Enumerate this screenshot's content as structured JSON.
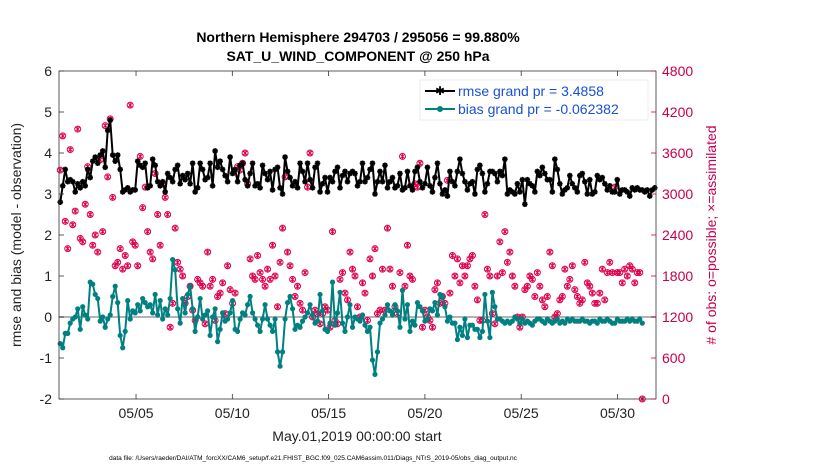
{
  "chart_data": {
    "type": "line",
    "title": "Northern Hemisphere 294703 / 295056 = 99.880%",
    "subtitle": "SAT_U_WIND_COMPONENT @ 250 hPa",
    "xlabel": "May.01,2019 00:00:00 start",
    "ylabel": "rmse and bias (model - observation)",
    "ylabel_right": "# of obs: o=possible; ×=assimilated",
    "footnote": "data file: /Users/raeder/DAI/ATM_forcXX/CAM6_setup/f.e21.FHIST_BGC.f09_025.CAM6assim.011/Diags_NTrS_2019-05/obs_diag_output.nc",
    "x_ticks": [
      "05/05",
      "05/10",
      "05/15",
      "05/20",
      "05/25",
      "05/30"
    ],
    "x_tick_days": [
      5,
      10,
      15,
      20,
      25,
      30
    ],
    "xlim": [
      1,
      32
    ],
    "ylim": [
      -2,
      6
    ],
    "y_ticks": [
      "-2",
      "-1",
      "0",
      "1",
      "2",
      "3",
      "4",
      "5",
      "6"
    ],
    "ylim_right": [
      0,
      4800
    ],
    "y_ticks_right": [
      "0",
      "600",
      "1200",
      "1800",
      "2400",
      "3000",
      "3600",
      "4200",
      "4800"
    ],
    "colors": {
      "rmse": "#000000",
      "bias": "#008080",
      "obs": "#e0004d",
      "legend_text": "#1a4fd6",
      "zero_line": "#b3b3b3"
    },
    "series": [
      {
        "name": "rmse grand pr = 3.4858",
        "values": [
          2.8,
          3.2,
          3.6,
          3.3,
          3.35,
          3.3,
          3.05,
          3.25,
          3.15,
          3.3,
          3.2,
          3.6,
          3.4,
          3.8,
          3.9,
          3.75,
          3.95,
          4.05,
          3.65,
          4.55,
          4.8,
          3.95,
          3.8,
          3.95,
          3.6,
          3.05,
          3.1,
          3.15,
          3.05,
          3.1,
          3.1,
          3.8,
          3.7,
          3.65,
          3.75,
          3.15,
          3.2,
          3.85,
          3.7,
          3.3,
          3.2,
          3.3,
          3.05,
          3.5,
          3.4,
          3.3,
          3.6,
          3.7,
          3.25,
          3.45,
          3.35,
          3.5,
          3.25,
          3.75,
          3.05,
          3.15,
          3.75,
          3.6,
          3.35,
          3.4,
          3.75,
          3.2,
          4.05,
          3.65,
          3.8,
          3.6,
          3.45,
          3.3,
          3.9,
          3.5,
          3.6,
          3.3,
          3.7,
          3.75,
          3.35,
          3.2,
          3.5,
          3.75,
          3.2,
          3.25,
          3.15,
          3.7,
          3.5,
          3.35,
          3.55,
          3.1,
          3.6,
          3.65,
          3.15,
          3.0,
          3.9,
          3.55,
          3.4,
          3.2,
          3.3,
          3.15,
          3.75,
          3.55,
          3.3,
          3.75,
          3.35,
          3.15,
          3.65,
          3.75,
          3.05,
          3.25,
          3.4,
          3.05,
          3.4,
          3.3,
          3.55,
          3.65,
          3.15,
          3.45,
          3.55,
          3.3,
          3.5,
          3.55,
          3.5,
          3.2,
          3.3,
          3.75,
          3.3,
          3.4,
          3.6,
          3.75,
          3.0,
          3.3,
          3.55,
          3.3,
          3.7,
          3.15,
          3.3,
          3.4,
          3.15,
          3.2,
          3.5,
          3.1,
          3.15,
          3.55,
          3.2,
          3.1,
          3.55,
          3.65,
          3.3,
          3.15,
          3.25,
          3.65,
          3.2,
          3.05,
          3.4,
          3.75,
          3.25,
          3.0,
          3.1,
          2.95,
          3.55,
          3.3,
          3.2,
          3.55,
          3.85,
          3.5,
          3.3,
          3.1,
          3.25,
          3.3,
          3.0,
          3.6,
          3.7,
          3.5,
          3.05,
          3.25,
          3.55,
          3.55,
          3.5,
          3.3,
          3.55,
          3.45,
          3.85,
          3.0,
          3.1,
          3.05,
          3.0,
          3.25,
          3.05,
          3.35,
          2.75,
          3.35,
          3.25,
          3.2,
          3.05,
          3.55,
          3.45,
          3.65,
          3.5,
          3.35,
          3.35,
          3.05,
          3.85,
          3.6,
          3.25,
          3.0,
          3.1,
          3.15,
          3.45,
          3.25,
          3.15,
          3.05,
          3.45,
          3.5,
          3.3,
          3.0,
          3.35,
          3.0,
          3.05,
          3.45,
          3.35,
          3.4,
          3.25,
          3.1,
          3.2,
          3.05,
          3.05,
          3.35,
          3.0,
          3.1,
          3.1,
          3.05,
          2.95,
          3.15,
          3.1,
          3.15,
          3.1,
          3.1,
          3.05,
          3.1,
          2.95,
          3.1,
          3.15
        ]
      },
      {
        "name": "bias grand pr = -0.062382",
        "values": [
          -0.65,
          -0.75,
          -0.4,
          -0.4,
          -0.15,
          -0.05,
          0.0,
          0.2,
          -0.3,
          0.25,
          0.05,
          -0.05,
          0.85,
          0.8,
          0.55,
          0.45,
          -0.1,
          0.0,
          -0.25,
          -0.05,
          0.05,
          0.5,
          0.75,
          0.35,
          -0.45,
          -0.75,
          -0.35,
          0.4,
          -0.05,
          0.15,
          0.1,
          0.3,
          0.15,
          0.45,
          0.35,
          0.25,
          0.3,
          0.1,
          0.55,
          0.05,
          0.4,
          -0.05,
          0.2,
          0.05,
          0.45,
          1.4,
          1.15,
          0.2,
          -0.15,
          0.45,
          0.1,
          0.55,
          0.75,
          0.2,
          -0.35,
          0.0,
          0.45,
          -0.05,
          0.05,
          0.15,
          -0.45,
          0.0,
          0.2,
          -0.6,
          -0.3,
          0.1,
          -0.1,
          -0.05,
          0.1,
          0.4,
          -0.3,
          -0.35,
          -0.05,
          0.1,
          0.05,
          0.3,
          0.5,
          0.1,
          -0.05,
          -0.2,
          -0.35,
          -0.05,
          0.3,
          -0.05,
          -0.2,
          -0.35,
          -0.05,
          -0.85,
          -1.2,
          -0.85,
          -0.05,
          0.35,
          0.5,
          0.2,
          -0.3,
          -0.2,
          -0.25,
          -0.1,
          0.0,
          0.1,
          0.3,
          0.05,
          -0.15,
          -0.1,
          0.55,
          0.15,
          -0.3,
          -0.35,
          -0.15,
          0.85,
          -0.2,
          0.1,
          0.6,
          -0.15,
          -0.35,
          0.0,
          0.3,
          -0.25,
          0.0,
          -0.05,
          -0.1,
          0.05,
          -0.2,
          -0.35,
          -0.25,
          -1.05,
          -1.4,
          -0.85,
          -0.15,
          -0.05,
          0.05,
          0.3,
          0.15,
          0.05,
          0.3,
          0.15,
          -0.25,
          0.65,
          -0.05,
          0.3,
          -0.35,
          -0.1,
          -0.2,
          0.35,
          0.25,
          0.15,
          -0.1,
          -0.05,
          0.2,
          0.15,
          0.35,
          0.05,
          0.55,
          0.5,
          0.25,
          -0.1,
          0.0,
          -0.15,
          -0.15,
          -0.55,
          -0.25,
          -0.45,
          -0.05,
          -0.5,
          -0.2,
          -0.2,
          -0.3,
          -0.3,
          -0.5,
          -0.35,
          0.55,
          -0.1,
          -0.5,
          0.6,
          0.25,
          -0.05,
          -0.05,
          -0.1,
          -0.15,
          -0.1,
          -0.15,
          -0.1,
          0.0,
          -0.05,
          -0.15,
          -0.05,
          -0.15,
          -0.1,
          -0.15,
          -0.2,
          -0.1,
          -0.05,
          -0.05,
          -0.1,
          -0.15,
          -0.05,
          -0.1,
          -0.15,
          -0.1,
          -0.05,
          -0.15,
          -0.1,
          -0.15,
          -0.05,
          -0.1,
          -0.05,
          -0.1,
          -0.1,
          -0.1,
          -0.05,
          -0.1,
          -0.1,
          -0.15,
          -0.1,
          -0.1,
          -0.15,
          -0.05,
          -0.1,
          -0.1,
          -0.05,
          -0.1,
          -0.15,
          -0.15,
          -0.05,
          -0.1,
          -0.1,
          -0.1,
          -0.05,
          -0.1,
          -0.05,
          -0.1,
          -0.1,
          -0.05,
          -0.15
        ]
      }
    ],
    "obs_counts": [
      3350,
      3850,
      2600,
      2200,
      3650,
      2550,
      2750,
      3950,
      2350,
      2300,
      2850,
      3400,
      2700,
      2250,
      2400,
      2150,
      3500,
      2450,
      4000,
      3250,
      4100,
      2950,
      1950,
      2000,
      2200,
      1900,
      2100,
      1950,
      4300,
      2300,
      2250,
      1950,
      3550,
      2800,
      3100,
      2450,
      2150,
      2050,
      3300,
      2700,
      2250,
      3150,
      2950,
      2700,
      1050,
      1400,
      2500,
      2000,
      1900,
      1800,
      1400,
      1500,
      1650,
      1300,
      1150,
      1750,
      1700,
      1650,
      1100,
      2150,
      1650,
      1750,
      1150,
      1500,
      1550,
      1700,
      1250,
      1950,
      1600,
      1400,
      1550,
      3400,
      3350,
      3450,
      3600,
      3150,
      2050,
      1800,
      1750,
      2100,
      1850,
      1750,
      1650,
      1900,
      1750,
      2250,
      1800,
      1350,
      2000,
      2500,
      3250,
      2150,
      1950,
      1750,
      1500,
      1650,
      1400,
      1300,
      1850,
      3100,
      3600,
      1200,
      1300,
      1250,
      1100,
      1250,
      1350,
      1300,
      1050,
      2450,
      1150,
      1100,
      1750,
      1850,
      1550,
      1450,
      2150,
      1900,
      1800,
      1350,
      1200,
      1700,
      1550,
      1150,
      2050,
      1800,
      2200,
      1250,
      1300,
      1900,
      1300,
      2500,
      1900,
      1650,
      1350,
      1250,
      1850,
      3550,
      1650,
      2250,
      1800,
      1750,
      3150,
      3100,
      3450,
      1050,
      1300,
      1200,
      1150,
      1050,
      1600,
      1700,
      1400,
      1500,
      1400,
      3200,
      1550,
      2100,
      1800,
      2050,
      1700,
      1950,
      1800,
      1950,
      2050,
      2100,
      1650,
      1450,
      1150,
      1150,
      2700,
      1900,
      1800,
      1250,
      1100,
      1800,
      2300,
      1850,
      2450,
      2000,
      2150,
      1800,
      1650,
      1200,
      1050,
      1200,
      1600,
      1650,
      1800,
      1750,
      1500,
      1850,
      1650,
      1450,
      1350,
      1500,
      2150,
      1950,
      1200,
      1250,
      1450,
      1500,
      1900,
      1650,
      1750,
      1950,
      1600,
      1500,
      1400,
      1450,
      2000,
      1700,
      1650,
      1550,
      1400,
      1400,
      1550,
      1900,
      1450,
      1850,
      2000,
      1850,
      3100,
      1850,
      1850,
      1700,
      1900,
      1800,
      1950,
      1900,
      1700,
      1850,
      1850,
      0
    ]
  }
}
